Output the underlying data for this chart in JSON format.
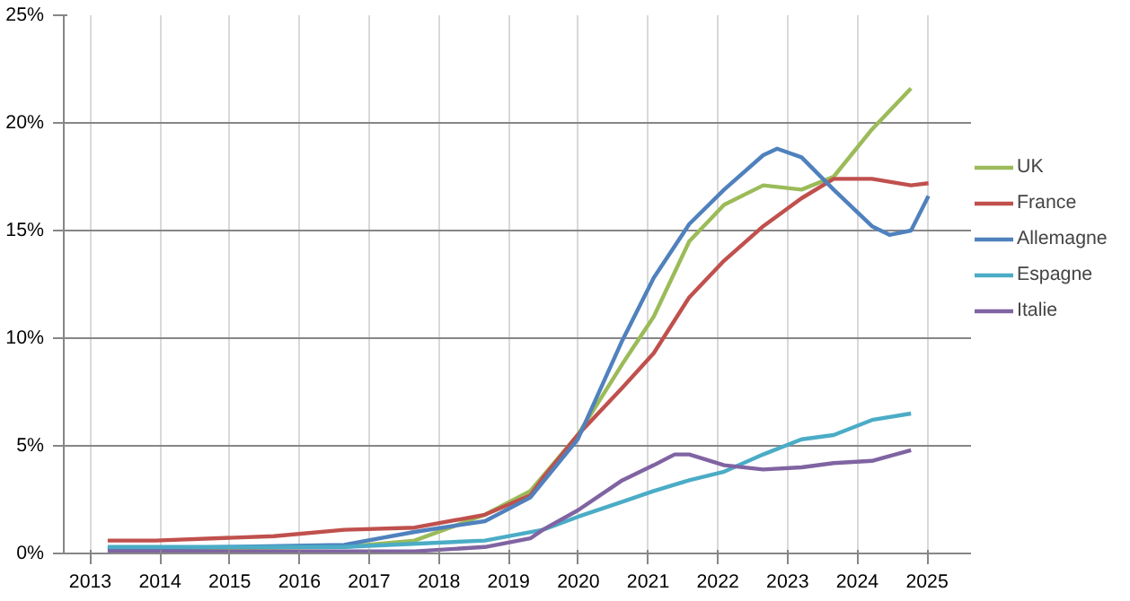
{
  "chart_data": {
    "type": "line",
    "xlim": [
      2012.62,
      2025.63
    ],
    "ylim": [
      0,
      25
    ],
    "xticks": [
      2013,
      2014,
      2015,
      2016,
      2017,
      2018,
      2019,
      2020,
      2021,
      2022,
      2023,
      2024,
      2025
    ],
    "yticks": [
      {
        "value": 0,
        "label": "0%"
      },
      {
        "value": 5,
        "label": "5%"
      },
      {
        "value": 10,
        "label": "10%"
      },
      {
        "value": 15,
        "label": "15%"
      },
      {
        "value": 20,
        "label": "20%"
      },
      {
        "value": 25,
        "label": "25%"
      }
    ],
    "grid": true,
    "legend": "right",
    "series": [
      {
        "name": "UK",
        "color": "#9bbb59",
        "x": [
          2013.25,
          2016.64,
          2017.65,
          2018.66,
          2019.31,
          2019.99,
          2020.63,
          2021.08,
          2021.59,
          2022.09,
          2022.65,
          2023.2,
          2023.66,
          2024.21,
          2024.77
        ],
        "values": [
          0.2,
          0.3,
          0.6,
          1.8,
          2.9,
          5.5,
          8.8,
          11,
          14.5,
          16.2,
          17.1,
          16.9,
          17.5,
          19.7,
          21.6
        ]
      },
      {
        "name": "France",
        "color": "#c0504d",
        "x": [
          2013.25,
          2013.93,
          2015.63,
          2016.64,
          2017.65,
          2018.66,
          2019.31,
          2019.49,
          2019.99,
          2020.63,
          2021.08,
          2021.59,
          2022.09,
          2022.65,
          2023.2,
          2023.66,
          2024.21,
          2024.77,
          2025.02
        ],
        "values": [
          0.6,
          0.6,
          0.8,
          1.1,
          1.2,
          1.8,
          2.7,
          3.5,
          5.5,
          7.7,
          9.3,
          11.9,
          13.6,
          15.2,
          16.5,
          17.4,
          17.4,
          17.1,
          17.2
        ]
      },
      {
        "name": "Allemagne",
        "color": "#4f81bd",
        "x": [
          2013.25,
          2016.64,
          2017.65,
          2018.66,
          2019.31,
          2019.99,
          2020.63,
          2021.08,
          2021.59,
          2022.09,
          2022.65,
          2022.85,
          2023.2,
          2023.66,
          2024.21,
          2024.46,
          2024.77,
          2025.02
        ],
        "values": [
          0.2,
          0.4,
          1.0,
          1.5,
          2.6,
          5.3,
          9.9,
          12.8,
          15.3,
          16.9,
          18.5,
          18.8,
          18.4,
          16.9,
          15.2,
          14.8,
          15.0,
          16.6
        ]
      },
      {
        "name": "Espagne",
        "color": "#4bacc6",
        "x": [
          2013.25,
          2016.64,
          2018.66,
          2019.49,
          2019.99,
          2020.63,
          2021.08,
          2021.59,
          2022.09,
          2022.65,
          2023.2,
          2023.66,
          2024.21,
          2024.77
        ],
        "values": [
          0.3,
          0.3,
          0.6,
          1.1,
          1.7,
          2.4,
          2.9,
          3.4,
          3.8,
          4.6,
          5.3,
          5.5,
          6.2,
          6.5
        ]
      },
      {
        "name": "Italie",
        "color": "#8064a2",
        "x": [
          2013.25,
          2017.65,
          2018.66,
          2019.31,
          2019.49,
          2019.99,
          2020.63,
          2021.08,
          2021.38,
          2021.59,
          2022.09,
          2022.65,
          2023.2,
          2023.66,
          2024.21,
          2024.77
        ],
        "values": [
          0.1,
          0.1,
          0.3,
          0.7,
          1.1,
          2.0,
          3.4,
          4.1,
          4.6,
          4.6,
          4.1,
          3.9,
          4.0,
          4.2,
          4.3,
          4.8
        ]
      }
    ]
  }
}
